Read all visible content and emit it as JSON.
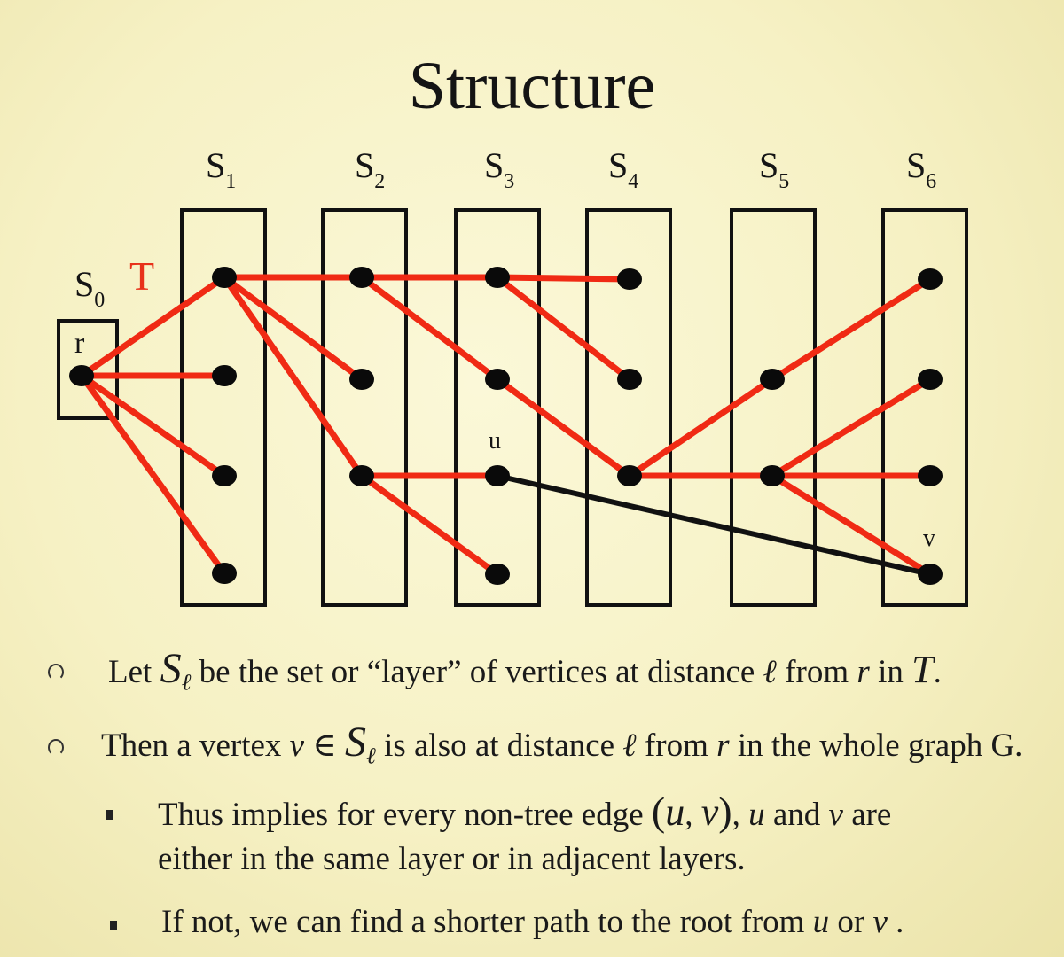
{
  "title": "Structure",
  "diagram": {
    "tree_label": "T",
    "root_set_label": {
      "base": "S",
      "sub": "0"
    },
    "layer_labels": [
      {
        "base": "S",
        "sub": "1"
      },
      {
        "base": "S",
        "sub": "2"
      },
      {
        "base": "S",
        "sub": "3"
      },
      {
        "base": "S",
        "sub": "4"
      },
      {
        "base": "S",
        "sub": "5"
      },
      {
        "base": "S",
        "sub": "6"
      }
    ],
    "node_labels": {
      "root": "r",
      "u": "u",
      "v": "v"
    },
    "colors": {
      "tree_edge": "#f02a14",
      "non_tree_edge": "#111111",
      "box": "#111111",
      "node": "#0a0a0a",
      "tree_label": "#e8311a"
    }
  },
  "bullets": [
    {
      "parts": [
        "Let ",
        "S",
        "ℓ",
        " be the set or “layer” of vertices at distance ",
        "ℓ",
        " from ",
        "r",
        " in ",
        "T",
        "."
      ]
    },
    {
      "parts": [
        "Then a vertex ",
        "v",
        " ∈ ",
        "S",
        "ℓ",
        " is also at distance ",
        "ℓ",
        "  from ",
        "r",
        " in the whole graph G."
      ]
    }
  ],
  "sub_bullets": [
    {
      "line1": [
        "Thus implies for every non-tree edge ",
        "(",
        "u",
        ", ",
        "v",
        ")",
        ", ",
        "u",
        " and ",
        "v",
        " are"
      ],
      "line2": "either in the same layer or in adjacent layers."
    },
    {
      "parts": [
        "If not, we can find a shorter path to the root from ",
        "u",
        " or ",
        "v",
        " ."
      ]
    }
  ]
}
